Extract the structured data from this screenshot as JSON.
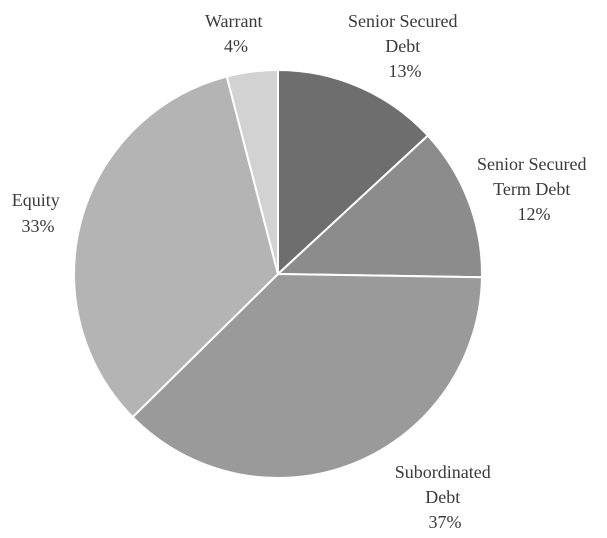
{
  "chart_data": {
    "type": "pie",
    "title": "",
    "start_angle_deg": 0,
    "direction": "clockwise",
    "slices": [
      {
        "lines": [
          "Senior Secured",
          "Debt"
        ],
        "pct_label": "13%",
        "value": 13,
        "color": "#6e6e6e"
      },
      {
        "lines": [
          "Senior Secured",
          "Term Debt"
        ],
        "pct_label": "12%",
        "value": 12,
        "color": "#8c8c8c"
      },
      {
        "lines": [
          "Subordinated",
          "Debt"
        ],
        "pct_label": "37%",
        "value": 37,
        "color": "#9a9a9a"
      },
      {
        "lines": [
          "Equity"
        ],
        "pct_label": "33%",
        "value": 33,
        "color": "#b4b4b4"
      },
      {
        "lines": [
          "Warrant"
        ],
        "pct_label": "4%",
        "value": 4,
        "color": "#d2d2d2"
      }
    ]
  }
}
